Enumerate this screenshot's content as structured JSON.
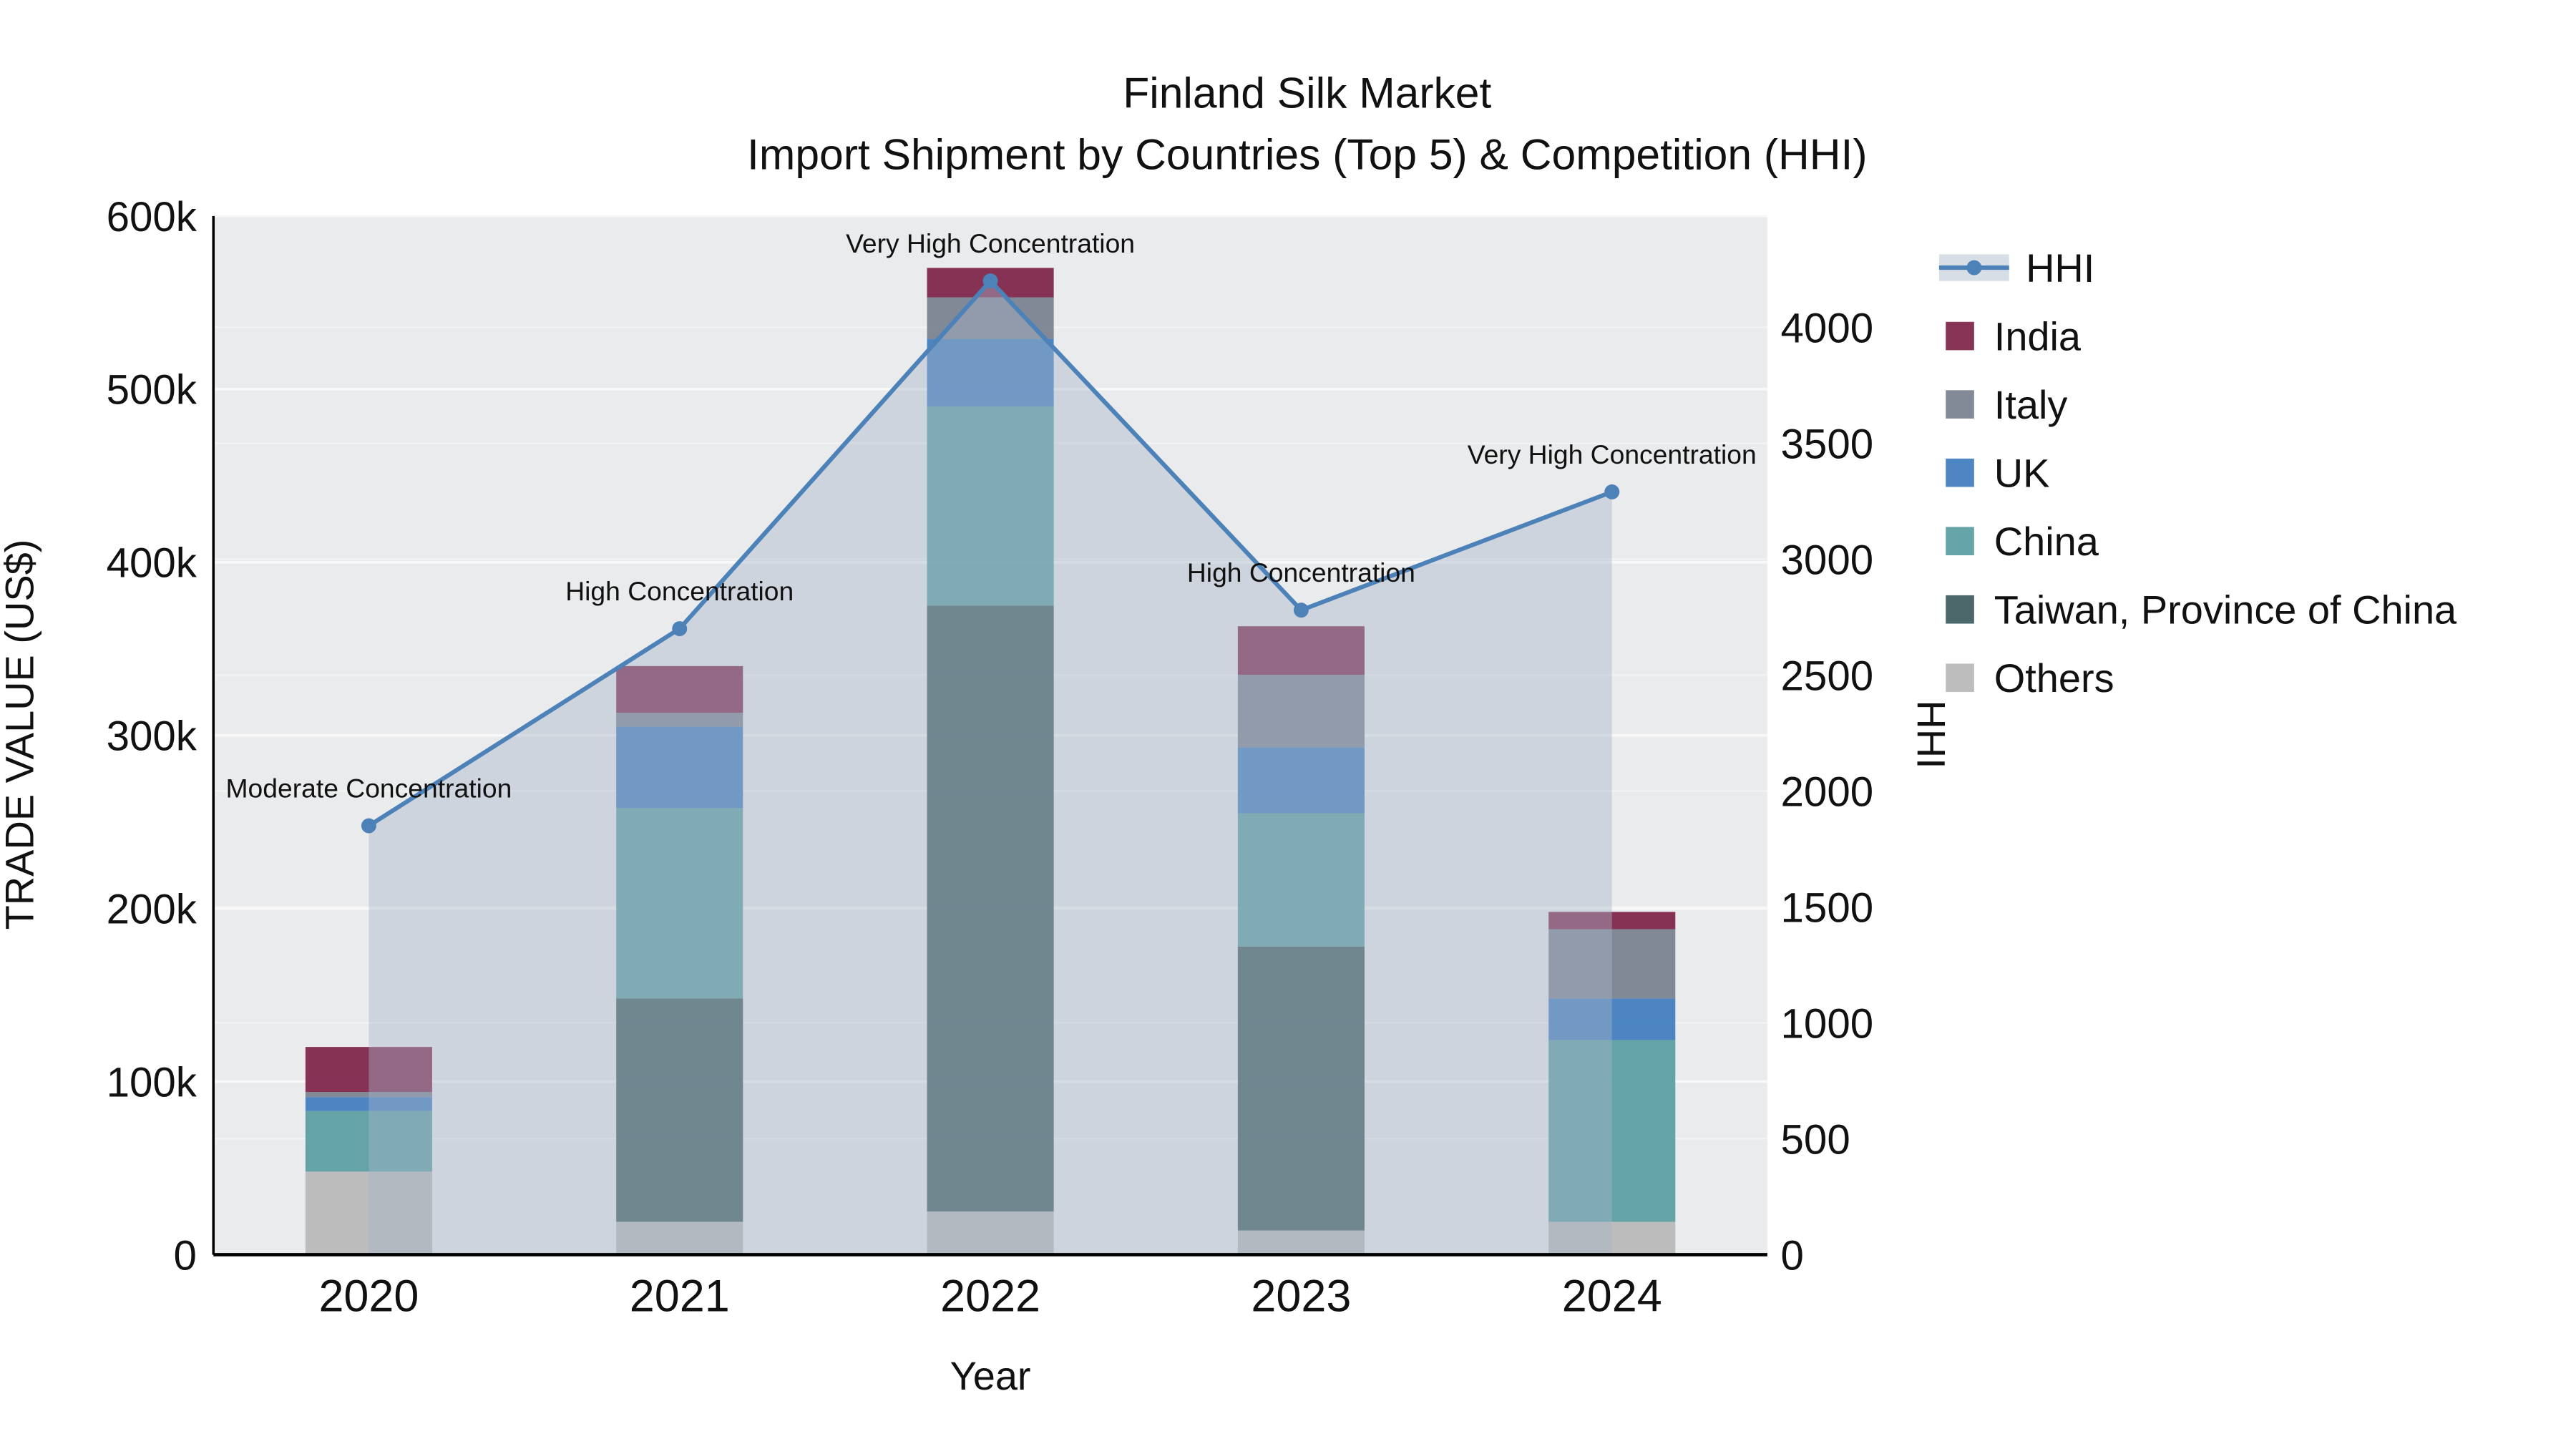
{
  "chart_data": {
    "type": "bar+line",
    "title": "Finland Silk Market",
    "subtitle": "Import Shipment by Countries (Top 5) & Competition (HHI)",
    "xlabel": "Year",
    "ylabel": "TRADE VALUE (US$)",
    "y2label": "HHI",
    "categories": [
      "2020",
      "2021",
      "2022",
      "2023",
      "2024"
    ],
    "series": [
      {
        "name": "Others",
        "color": "#b7b7b7",
        "values": [
          48000,
          19000,
          25000,
          14000,
          19000
        ]
      },
      {
        "name": "Taiwan, Province of China",
        "color": "#3c5a5c",
        "values": [
          0,
          129000,
          350000,
          164000,
          0
        ]
      },
      {
        "name": "China",
        "color": "#589da1",
        "values": [
          35000,
          110000,
          115000,
          77000,
          105000
        ]
      },
      {
        "name": "UK",
        "color": "#3e7cbe",
        "values": [
          8000,
          47000,
          39000,
          38000,
          24000
        ]
      },
      {
        "name": "Italy",
        "color": "#77808e",
        "values": [
          3000,
          8000,
          24000,
          42000,
          40000
        ]
      },
      {
        "name": "India",
        "color": "#7d2248",
        "values": [
          26000,
          27000,
          17000,
          28000,
          10000
        ]
      }
    ],
    "hhi": {
      "name": "HHI",
      "color": "#4d82b8",
      "area_color": "#a8b6c8",
      "values": [
        1850,
        2700,
        4200,
        2780,
        3290
      ]
    },
    "annotations": [
      "Moderate Concentration",
      "High Concentration",
      "Very High Concentration",
      "High Concentration",
      "Very High Concentration"
    ],
    "y_ticklabels": [
      "0",
      "100k",
      "200k",
      "300k",
      "400k",
      "500k",
      "600k"
    ],
    "ylim": [
      0,
      600000
    ],
    "y2_ticklabels": [
      "0",
      "500",
      "1000",
      "1500",
      "2000",
      "2500",
      "3000",
      "3500",
      "4000"
    ],
    "y2lim": [
      0,
      4480
    ],
    "y2_tick_step": 500,
    "legend_order": [
      "HHI",
      "India",
      "Italy",
      "UK",
      "China",
      "Taiwan, Province of China",
      "Others"
    ],
    "plot_bg": "#eaebed",
    "grid_color": "#f8f8f8"
  }
}
